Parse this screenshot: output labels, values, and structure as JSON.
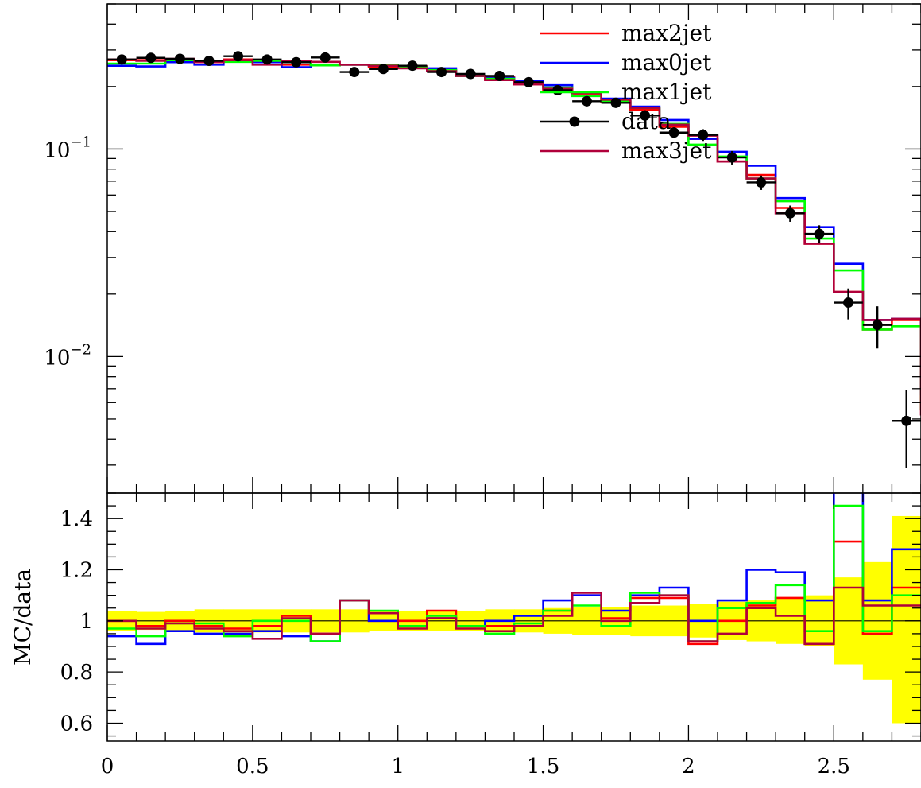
{
  "chart_data": [
    {
      "type": "line",
      "subtype": "step-histogram",
      "yscale": "log",
      "ylim": [
        0.0022,
        0.5
      ],
      "xlim": [
        0,
        2.8
      ],
      "grid": false,
      "legend_placement": "top-right",
      "bin_edges": [
        0,
        0.1,
        0.2,
        0.3,
        0.4,
        0.5,
        0.6,
        0.7,
        0.8,
        0.9,
        1.0,
        1.1,
        1.2,
        1.3,
        1.4,
        1.5,
        1.6,
        1.7,
        1.8,
        1.9,
        2.0,
        2.1,
        2.2,
        2.3,
        2.4,
        2.5,
        2.6,
        2.7,
        2.8
      ],
      "y_tick_labels": [
        {
          "base": "10",
          "exp": "−1",
          "value": 0.1
        },
        {
          "base": "10",
          "exp": "−2",
          "value": 0.01
        }
      ],
      "series": [
        {
          "name": "max2jet",
          "color": "#ff0000",
          "values": [
            0.268,
            0.268,
            0.268,
            0.263,
            0.27,
            0.265,
            0.255,
            0.253,
            0.255,
            0.248,
            0.25,
            0.24,
            0.225,
            0.222,
            0.205,
            0.192,
            0.182,
            0.168,
            0.155,
            0.128,
            0.112,
            0.087,
            0.075,
            0.052,
            0.035,
            0.0205,
            0.0135,
            0.015,
            0.0055
          ]
        },
        {
          "name": "max0jet",
          "color": "#0000ff",
          "values": [
            0.252,
            0.25,
            0.262,
            0.255,
            0.266,
            0.262,
            0.248,
            0.253,
            0.255,
            0.252,
            0.248,
            0.245,
            0.225,
            0.22,
            0.212,
            0.203,
            0.187,
            0.175,
            0.16,
            0.138,
            0.112,
            0.097,
            0.083,
            0.058,
            0.042,
            0.028,
            0.015,
            0.0152,
            0.0065
          ]
        },
        {
          "name": "max1jet",
          "color": "#00ff00",
          "values": [
            0.258,
            0.258,
            0.268,
            0.264,
            0.263,
            0.266,
            0.262,
            0.253,
            0.255,
            0.254,
            0.247,
            0.24,
            0.225,
            0.218,
            0.207,
            0.198,
            0.18,
            0.17,
            0.158,
            0.132,
            0.105,
            0.092,
            0.072,
            0.056,
            0.037,
            0.026,
            0.0135,
            0.014,
            0.0055
          ]
        },
        {
          "name": "data",
          "color": "#000000",
          "marker": "circle",
          "x": [
            0.05,
            0.15,
            0.25,
            0.35,
            0.45,
            0.55,
            0.65,
            0.75,
            0.85,
            0.95,
            1.05,
            1.15,
            1.25,
            1.35,
            1.45,
            1.55,
            1.65,
            1.75,
            1.85,
            1.95,
            2.05,
            2.15,
            2.25,
            2.35,
            2.45,
            2.55,
            2.65,
            2.75
          ],
          "values": [
            0.27,
            0.275,
            0.272,
            0.266,
            0.28,
            0.27,
            0.262,
            0.276,
            0.235,
            0.243,
            0.252,
            0.235,
            0.23,
            0.225,
            0.21,
            0.192,
            0.17,
            0.167,
            0.145,
            0.12,
            0.117,
            0.091,
            0.069,
            0.049,
            0.039,
            0.0182,
            0.0142,
            0.0049
          ]
        },
        {
          "name": "max3jet",
          "color": "#b0003a",
          "values": [
            0.27,
            0.266,
            0.272,
            0.262,
            0.268,
            0.255,
            0.265,
            0.263,
            0.255,
            0.252,
            0.245,
            0.237,
            0.225,
            0.215,
            0.205,
            0.195,
            0.186,
            0.173,
            0.158,
            0.131,
            0.116,
            0.087,
            0.072,
            0.049,
            0.035,
            0.0205,
            0.015,
            0.0152,
            0.0052
          ]
        }
      ]
    },
    {
      "type": "line",
      "subtype": "ratio-step-histogram",
      "ylabel": "MC/data",
      "xlim": [
        0,
        2.8
      ],
      "ylim": [
        0.53,
        1.5
      ],
      "reference_line": 1.0,
      "x_tick_labels": [
        "0",
        "0.5",
        "1",
        "1.5",
        "2",
        "2.5"
      ],
      "y_tick_labels": [
        "0.6",
        "0.8",
        "1",
        "1.2",
        "1.4"
      ],
      "band": {
        "name": "data-uncertainty",
        "color": "#ffff00",
        "lower": [
          0.96,
          0.965,
          0.96,
          0.955,
          0.955,
          0.955,
          0.955,
          0.955,
          0.955,
          0.96,
          0.96,
          0.96,
          0.96,
          0.955,
          0.955,
          0.95,
          0.945,
          0.945,
          0.94,
          0.94,
          0.935,
          0.925,
          0.92,
          0.91,
          0.9,
          0.83,
          0.77,
          0.6
        ],
        "upper": [
          1.04,
          1.035,
          1.04,
          1.045,
          1.045,
          1.045,
          1.045,
          1.045,
          1.045,
          1.04,
          1.04,
          1.04,
          1.04,
          1.045,
          1.045,
          1.05,
          1.055,
          1.055,
          1.06,
          1.06,
          1.065,
          1.075,
          1.08,
          1.09,
          1.1,
          1.17,
          1.23,
          1.41
        ]
      },
      "series": [
        {
          "name": "max2jet",
          "color": "#ff0000",
          "values": [
            1.0,
            0.98,
            1.0,
            0.98,
            0.97,
            0.98,
            1.02,
            0.95,
            1.08,
            1.0,
            1.0,
            1.04,
            0.98,
            0.98,
            0.98,
            1.04,
            1.1,
            1.01,
            1.09,
            1.09,
            0.91,
            1.0,
            1.06,
            1.09,
            0.91,
            1.31,
            0.95,
            1.13
          ]
        },
        {
          "name": "max0jet",
          "color": "#0000ff",
          "values": [
            0.94,
            0.91,
            0.96,
            0.95,
            0.95,
            0.96,
            0.94,
            0.92,
            1.08,
            1.0,
            0.98,
            1.01,
            0.98,
            1.0,
            1.02,
            1.08,
            1.1,
            1.04,
            1.1,
            1.13,
            1.0,
            1.08,
            1.2,
            1.19,
            1.08,
            1.6,
            1.08,
            1.28
          ]
        },
        {
          "name": "max1jet",
          "color": "#00ff00",
          "values": [
            0.97,
            0.94,
            0.99,
            0.99,
            0.94,
            1.0,
            1.0,
            0.92,
            1.08,
            1.04,
            0.98,
            1.02,
            0.98,
            0.95,
            0.99,
            1.04,
            1.06,
            0.98,
            1.11,
            1.1,
            0.92,
            1.05,
            1.07,
            1.14,
            0.96,
            1.45,
            0.96,
            1.1
          ]
        },
        {
          "name": "max3jet",
          "color": "#b0003a",
          "values": [
            1.0,
            0.97,
            0.99,
            0.97,
            0.96,
            0.93,
            1.01,
            0.95,
            1.08,
            1.03,
            0.97,
            1.01,
            0.97,
            0.96,
            0.98,
            1.02,
            1.11,
            1.0,
            1.07,
            1.1,
            0.92,
            0.95,
            1.05,
            1.02,
            0.91,
            1.13,
            1.06,
            1.06
          ]
        }
      ]
    }
  ]
}
